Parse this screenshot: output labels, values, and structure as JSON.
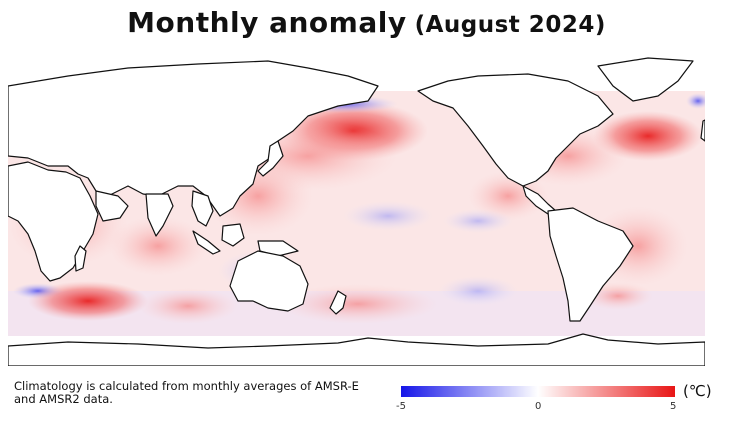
{
  "title": {
    "main": "Monthly anomaly",
    "period": "(August 2024)"
  },
  "note": "Climatology is calculated from monthly averages of AMSR-E and AMSR2 data.",
  "colorbar": {
    "ticks": [
      "-5",
      "0",
      "5"
    ],
    "unit": "(℃)",
    "colors": {
      "low": "#1515e8",
      "mid": "#ffffff",
      "high": "#e81515"
    }
  }
}
